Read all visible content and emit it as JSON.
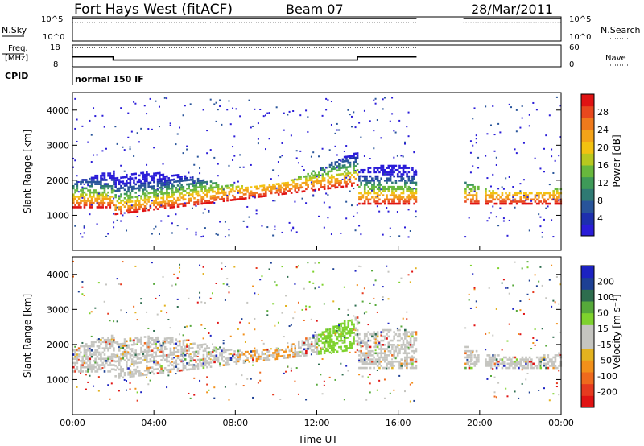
{
  "header": {
    "station": "Fort Hays West (fitACF)",
    "beam": "Beam 07",
    "date": "28/Mar/2011"
  },
  "labels": {
    "nsky": "N.Sky",
    "nsearch": "N.Search",
    "freq": "Freq.",
    "freq_unit": "[MHz]",
    "nave": "Nave",
    "cpid": "CPID",
    "cpid_value": "normal 150 IF",
    "time_axis": "Time UT"
  },
  "colors": {
    "power_scale": [
      "#2a1cd8",
      "#1d2fae",
      "#28549a",
      "#2f7a73",
      "#3e9a58",
      "#68b83d",
      "#b8c81f",
      "#f2c211",
      "#f3a319",
      "#ef7a1c",
      "#e8481e",
      "#e01313"
    ],
    "velocity_scale": [
      "#1c22c2",
      "#1d4094",
      "#2d6d4e",
      "#56a93a",
      "#7ed22d",
      "#c5c5c0",
      "#c5c5c0",
      "#e3b21f",
      "#f2901a",
      "#ef6a1d",
      "#e63a1f",
      "#e01313"
    ]
  },
  "chart_data": [
    {
      "type": "line",
      "panel": "noise",
      "ylabel_left": "N.Sky",
      "ylabel_right": "N.Search",
      "y_ticks_left": [
        "10^5",
        "10^0"
      ],
      "y_ticks_right": [
        "10^5",
        "10^0"
      ],
      "series": [
        {
          "name": "N.Sky",
          "x": [
            0,
            16.9,
            19.2,
            24
          ],
          "y": [
            100000,
            100000,
            100000,
            100000
          ]
        },
        {
          "name": "N.Search",
          "x": [
            0,
            16.9,
            19.2,
            24
          ],
          "y": [
            10000,
            10000,
            10000,
            10000
          ]
        }
      ],
      "gaps": [
        [
          16.9,
          19.2
        ],
        [
          19.9,
          20.2
        ]
      ]
    },
    {
      "type": "line",
      "panel": "frequency",
      "ylabel_left": "Freq. [MHz]",
      "ylabel_right": "Nave",
      "y_ticks_left": [
        "18",
        "8"
      ],
      "y_ticks_right": [
        "60",
        "0"
      ],
      "series": [
        {
          "name": "Freq.",
          "x": [
            0,
            2.0,
            2.0,
            14.0,
            14.0,
            16.9
          ],
          "y": [
            12.5,
            12.5,
            10.8,
            10.8,
            12.5,
            12.5
          ]
        },
        {
          "name": "Nave",
          "x": [
            0,
            16.9
          ],
          "y": [
            57,
            57
          ]
        }
      ],
      "cpid": "normal 150 IF"
    },
    {
      "type": "heatmap",
      "panel": "power",
      "xlabel": "",
      "ylabel": "Slant Range [km]",
      "y_ticks": [
        "1000",
        "2000",
        "3000",
        "4000"
      ],
      "ylim": [
        0,
        4500
      ],
      "colorbar_label": "Power [dB]",
      "colorbar_ticks": [
        "28",
        "24",
        "20",
        "16",
        "12",
        "8",
        "4"
      ],
      "colorbar_range": [
        0,
        30
      ],
      "x_ticks": [
        "00:00",
        "04:00",
        "08:00",
        "12:00",
        "16:00",
        "20:00",
        "00:00"
      ],
      "xlim": [
        0,
        24
      ]
    },
    {
      "type": "heatmap",
      "panel": "velocity",
      "xlabel": "Time UT",
      "ylabel": "Slant Range [km]",
      "y_ticks": [
        "1000",
        "2000",
        "3000",
        "4000"
      ],
      "ylim": [
        0,
        4500
      ],
      "colorbar_label": "Velocity [m s⁻¹]",
      "colorbar_ticks": [
        "200",
        "100",
        "50",
        "15",
        "-15",
        "-50",
        "-100",
        "-200"
      ],
      "x_ticks": [
        "00:00",
        "04:00",
        "08:00",
        "12:00",
        "16:00",
        "20:00",
        "00:00"
      ],
      "xlim": [
        0,
        24
      ]
    }
  ]
}
